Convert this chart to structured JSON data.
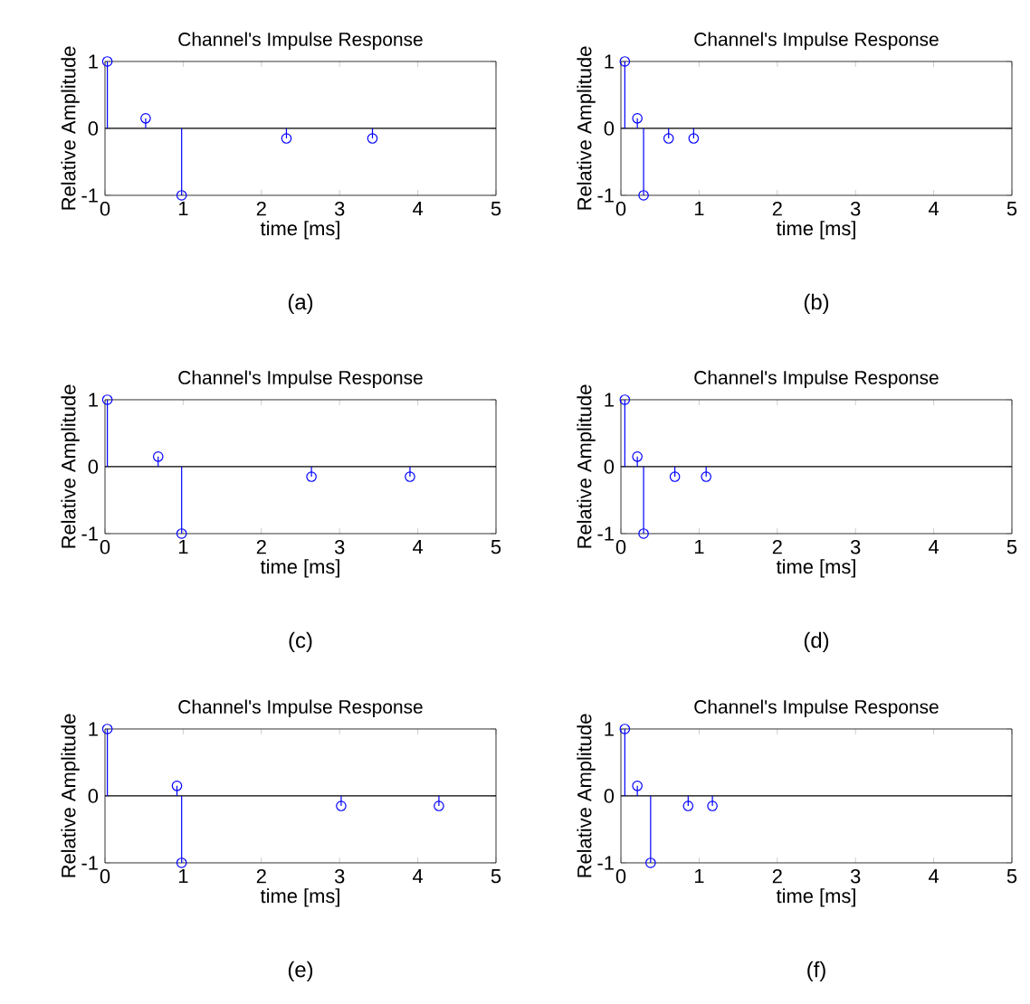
{
  "chart_data": [
    {
      "type": "lollipop",
      "title": "Channel's Impulse Response",
      "xlabel": "time [ms]",
      "ylabel": "Relative Amplitude",
      "annotations": [
        "(a)"
      ],
      "marker": "circle",
      "x": [
        0.03,
        0.52,
        0.98,
        2.32,
        3.42
      ],
      "values": [
        1,
        0.15,
        -1,
        -0.15,
        -0.15
      ],
      "color": "#0000ff",
      "xlim": [
        0,
        5
      ],
      "ylim": [
        -1,
        1
      ],
      "xticks": [
        0,
        1,
        2,
        3,
        4,
        5
      ],
      "yticks": [
        -1,
        0,
        1
      ],
      "ref_lines": [
        {
          "axis": "y",
          "value": 0,
          "color": "#000000"
        }
      ]
    },
    {
      "type": "lollipop",
      "title": "Channel's Impulse Response",
      "xlabel": "time [ms]",
      "ylabel": "Relative Amplitude",
      "annotations": [
        "(b)"
      ],
      "marker": "circle",
      "x": [
        0.05,
        0.21,
        0.29,
        0.61,
        0.93
      ],
      "values": [
        1,
        0.15,
        -1,
        -0.15,
        -0.15
      ],
      "color": "#0000ff",
      "xlim": [
        0,
        5
      ],
      "ylim": [
        -1,
        1
      ],
      "xticks": [
        0,
        1,
        2,
        3,
        4,
        5
      ],
      "yticks": [
        -1,
        0,
        1
      ],
      "ref_lines": [
        {
          "axis": "y",
          "value": 0,
          "color": "#000000"
        }
      ]
    },
    {
      "type": "lollipop",
      "title": "Channel's Impulse Response",
      "xlabel": "time [ms]",
      "ylabel": "Relative Amplitude",
      "annotations": [
        "(c)"
      ],
      "marker": "circle",
      "x": [
        0.03,
        0.68,
        0.98,
        2.64,
        3.9
      ],
      "values": [
        1,
        0.15,
        -1,
        -0.15,
        -0.15
      ],
      "color": "#0000ff",
      "xlim": [
        0,
        5
      ],
      "ylim": [
        -1,
        1
      ],
      "xticks": [
        0,
        1,
        2,
        3,
        4,
        5
      ],
      "yticks": [
        -1,
        0,
        1
      ],
      "ref_lines": [
        {
          "axis": "y",
          "value": 0,
          "color": "#000000"
        }
      ]
    },
    {
      "type": "lollipop",
      "title": "Channel's Impulse Response",
      "xlabel": "time [ms]",
      "ylabel": "Relative Amplitude",
      "annotations": [
        "(d)"
      ],
      "marker": "circle",
      "x": [
        0.05,
        0.21,
        0.29,
        0.69,
        1.09
      ],
      "values": [
        1,
        0.15,
        -1,
        -0.15,
        -0.15
      ],
      "color": "#0000ff",
      "xlim": [
        0,
        5
      ],
      "ylim": [
        -1,
        1
      ],
      "xticks": [
        0,
        1,
        2,
        3,
        4,
        5
      ],
      "yticks": [
        -1,
        0,
        1
      ],
      "ref_lines": [
        {
          "axis": "y",
          "value": 0,
          "color": "#000000"
        }
      ]
    },
    {
      "type": "lollipop",
      "title": "Channel's Impulse Response",
      "xlabel": "time [ms]",
      "ylabel": "Relative Amplitude",
      "annotations": [
        "(e)"
      ],
      "marker": "circle",
      "x": [
        0.03,
        0.92,
        0.98,
        3.02,
        4.27
      ],
      "values": [
        1,
        0.15,
        -1,
        -0.15,
        -0.15
      ],
      "color": "#0000ff",
      "xlim": [
        0,
        5
      ],
      "ylim": [
        -1,
        1
      ],
      "xticks": [
        0,
        1,
        2,
        3,
        4,
        5
      ],
      "yticks": [
        -1,
        0,
        1
      ],
      "ref_lines": [
        {
          "axis": "y",
          "value": 0,
          "color": "#000000"
        }
      ]
    },
    {
      "type": "lollipop",
      "title": "Channel's Impulse Response",
      "xlabel": "time [ms]",
      "ylabel": "Relative Amplitude",
      "annotations": [
        "(f)"
      ],
      "marker": "circle",
      "x": [
        0.05,
        0.21,
        0.38,
        0.86,
        1.17
      ],
      "values": [
        1,
        0.15,
        -1,
        -0.15,
        -0.15
      ],
      "color": "#0000ff",
      "xlim": [
        0,
        5
      ],
      "ylim": [
        -1,
        1
      ],
      "xticks": [
        0,
        1,
        2,
        3,
        4,
        5
      ],
      "yticks": [
        -1,
        0,
        1
      ],
      "ref_lines": [
        {
          "axis": "y",
          "value": 0,
          "color": "#000000"
        }
      ]
    }
  ]
}
